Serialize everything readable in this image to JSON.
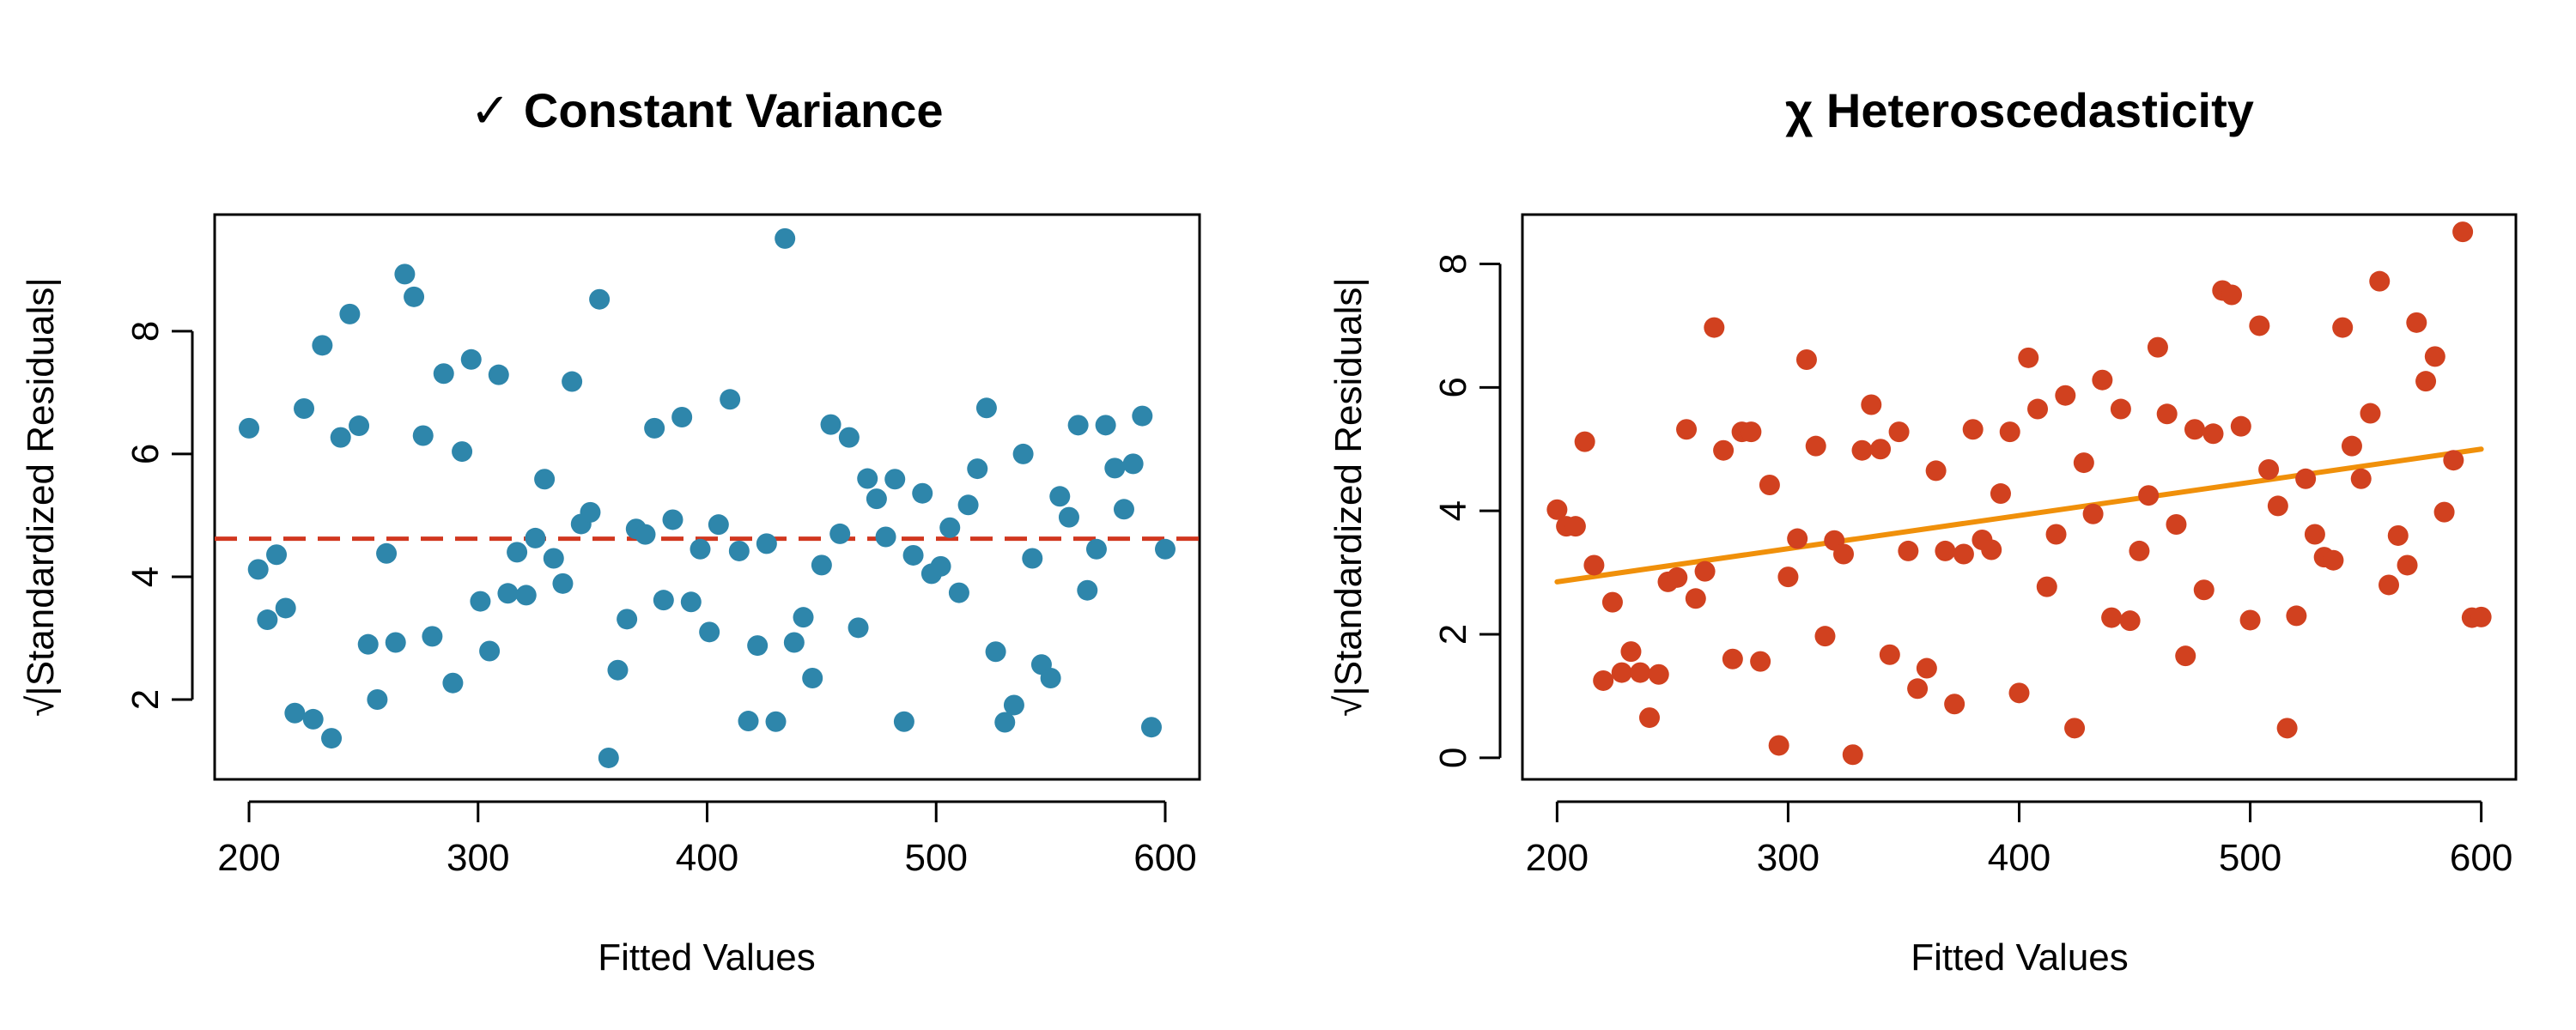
{
  "chart_data": [
    {
      "type": "scatter",
      "title": "✓ Constant Variance",
      "xlabel": "Fitted Values",
      "ylabel": "√|Standardized Residuals|",
      "xlim": [
        185,
        615
      ],
      "ylim": [
        0.7,
        9.9
      ],
      "xticks": [
        200,
        300,
        400,
        500,
        600
      ],
      "yticks": [
        2,
        4,
        6,
        8
      ],
      "point_color": "#2E86AB",
      "reference_line": {
        "style": "dashed",
        "y": 4.62,
        "color": "#D1371F"
      },
      "series": [
        {
          "x": [
            200,
            204,
            208,
            212,
            216,
            220,
            224,
            228,
            232,
            236,
            240,
            244,
            248,
            252,
            256,
            260,
            264,
            268,
            272,
            276,
            280,
            285,
            289,
            293,
            297,
            301,
            305,
            309,
            313,
            317,
            321,
            325,
            329,
            333,
            337,
            341,
            345,
            349,
            353,
            357,
            361,
            365,
            369,
            373,
            377,
            381,
            385,
            389,
            393,
            397,
            401,
            405,
            410,
            414,
            418,
            422,
            426,
            430,
            434,
            438,
            442,
            446,
            450,
            454,
            458,
            462,
            466,
            470,
            474,
            478,
            482,
            486,
            490,
            494,
            498,
            502,
            506,
            510,
            514,
            518,
            522,
            526,
            530,
            534,
            538,
            542,
            546,
            550,
            554,
            558,
            562,
            566,
            570,
            574,
            578,
            582,
            586,
            590,
            594,
            600
          ],
          "y": [
            6.42,
            4.12,
            3.3,
            4.36,
            3.49,
            1.78,
            6.74,
            1.68,
            7.77,
            1.37,
            6.27,
            8.28,
            6.46,
            2.9,
            2.0,
            4.38,
            2.93,
            8.93,
            8.56,
            6.3,
            3.03,
            7.31,
            2.27,
            6.04,
            7.54,
            3.6,
            2.79,
            7.29,
            3.73,
            4.4,
            3.7,
            4.63,
            5.59,
            4.3,
            3.89,
            7.18,
            4.86,
            5.05,
            8.52,
            1.05,
            2.48,
            3.31,
            4.78,
            4.69,
            6.42,
            3.62,
            4.93,
            6.6,
            3.59,
            4.45,
            3.1,
            4.85,
            6.89,
            4.42,
            1.65,
            2.88,
            4.54,
            1.64,
            9.51,
            2.93,
            3.34,
            2.35,
            4.19,
            6.48,
            4.7,
            6.27,
            3.17,
            5.6,
            5.27,
            4.65,
            5.59,
            1.64,
            4.35,
            5.36,
            4.05,
            4.17,
            4.8,
            3.74,
            5.17,
            5.76,
            6.75,
            2.78,
            1.63,
            1.91,
            6.0,
            4.3,
            2.57,
            2.35,
            5.31,
            4.97,
            6.47,
            3.78,
            4.45,
            6.47,
            5.77,
            5.1,
            5.84,
            6.62,
            1.55,
            4.45
          ]
        }
      ]
    },
    {
      "type": "scatter",
      "title": "χ Heteroscedasticity",
      "xlabel": "Fitted Values",
      "ylabel": "√|Standardized Residuals|",
      "xlim": [
        185,
        615
      ],
      "ylim": [
        -0.35,
        8.8
      ],
      "xticks": [
        200,
        300,
        400,
        500,
        600
      ],
      "yticks": [
        0,
        2,
        4,
        6,
        8
      ],
      "point_color": "#D1411F",
      "trend_line": {
        "color": "#F0900A",
        "x": [
          200,
          600
        ],
        "y": [
          2.85,
          5.0
        ]
      },
      "series": [
        {
          "x": [
            200,
            204,
            208,
            212,
            216,
            220,
            224,
            228,
            232,
            236,
            240,
            244,
            248,
            252,
            256,
            260,
            264,
            268,
            272,
            276,
            280,
            284,
            288,
            292,
            296,
            300,
            304,
            308,
            312,
            316,
            320,
            324,
            328,
            332,
            336,
            340,
            344,
            348,
            352,
            356,
            360,
            364,
            368,
            372,
            376,
            380,
            384,
            388,
            392,
            396,
            400,
            404,
            408,
            412,
            416,
            420,
            424,
            428,
            432,
            436,
            440,
            444,
            448,
            452,
            456,
            460,
            464,
            468,
            472,
            476,
            480,
            484,
            488,
            492,
            496,
            500,
            504,
            508,
            512,
            516,
            520,
            524,
            528,
            532,
            536,
            540,
            544,
            548,
            552,
            556,
            560,
            564,
            568,
            572,
            576,
            580,
            584,
            588,
            592,
            596,
            600
          ],
          "y": [
            4.02,
            3.75,
            3.75,
            5.12,
            3.12,
            1.25,
            2.52,
            1.38,
            1.72,
            1.38,
            0.65,
            1.35,
            2.85,
            2.92,
            5.32,
            2.58,
            3.02,
            6.97,
            4.98,
            1.6,
            5.28,
            5.28,
            1.56,
            4.42,
            0.2,
            2.93,
            3.55,
            6.45,
            5.05,
            1.97,
            3.52,
            3.3,
            0.05,
            4.98,
            5.72,
            5.0,
            1.67,
            5.28,
            3.35,
            1.12,
            1.45,
            4.65,
            3.35,
            0.87,
            3.3,
            5.32,
            3.53,
            3.37,
            4.28,
            5.28,
            1.05,
            6.48,
            5.65,
            2.77,
            3.62,
            5.87,
            0.48,
            4.78,
            3.95,
            6.12,
            2.27,
            5.65,
            2.22,
            3.35,
            4.25,
            6.65,
            5.57,
            3.78,
            1.65,
            5.32,
            2.72,
            5.25,
            7.57,
            7.5,
            5.37,
            2.23,
            7.0,
            4.67,
            4.08,
            0.48,
            2.3,
            4.52,
            3.62,
            3.25,
            3.2,
            6.97,
            5.05,
            4.52,
            5.58,
            7.72,
            2.8,
            3.6,
            3.12,
            7.05,
            6.1,
            6.5,
            3.98,
            4.82,
            8.52,
            2.27,
            2.28
          ]
        }
      ]
    }
  ]
}
